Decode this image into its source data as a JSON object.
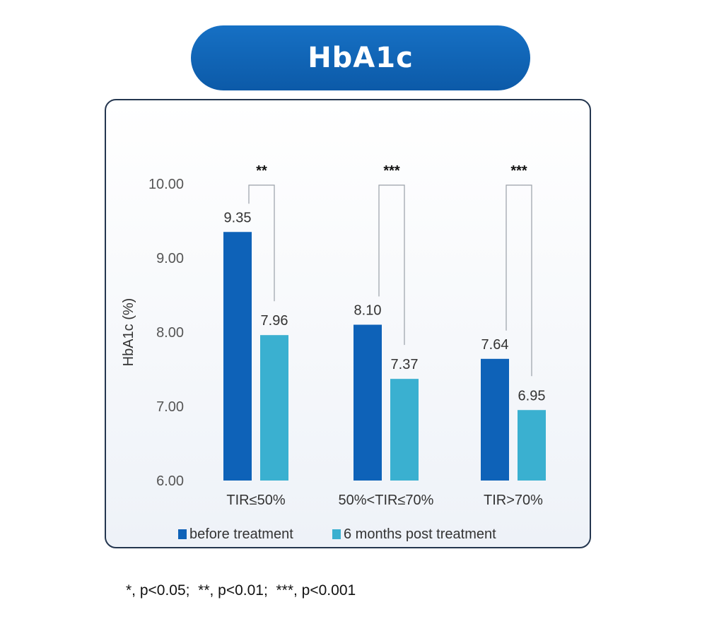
{
  "chart_data": {
    "type": "bar",
    "title": "HbA1c",
    "ylabel": "HbA1c (%)",
    "xlabel": "",
    "ylim": [
      6.0,
      10.0
    ],
    "yticks": [
      "10.00",
      "9.00",
      "8.00",
      "7.00",
      "6.00"
    ],
    "categories": [
      "TIR≤50%",
      "50%<TIR≤70%",
      "TIR>70%"
    ],
    "series": [
      {
        "name": "before treatment",
        "values": [
          9.35,
          8.1,
          7.64
        ],
        "labels": [
          "9.35",
          "8.10",
          "7.64"
        ],
        "color": "#0e62b8"
      },
      {
        "name": "6 months post treatment",
        "values": [
          7.96,
          7.37,
          6.95
        ],
        "labels": [
          "7.96",
          "7.37",
          "6.95"
        ],
        "color": "#3ab0d0"
      }
    ],
    "significance": [
      "**",
      "***",
      "***"
    ],
    "grid": false,
    "legend": "bottom"
  },
  "footnote": "*, p<0.05;  **, p<0.01;  ***, p<0.001"
}
